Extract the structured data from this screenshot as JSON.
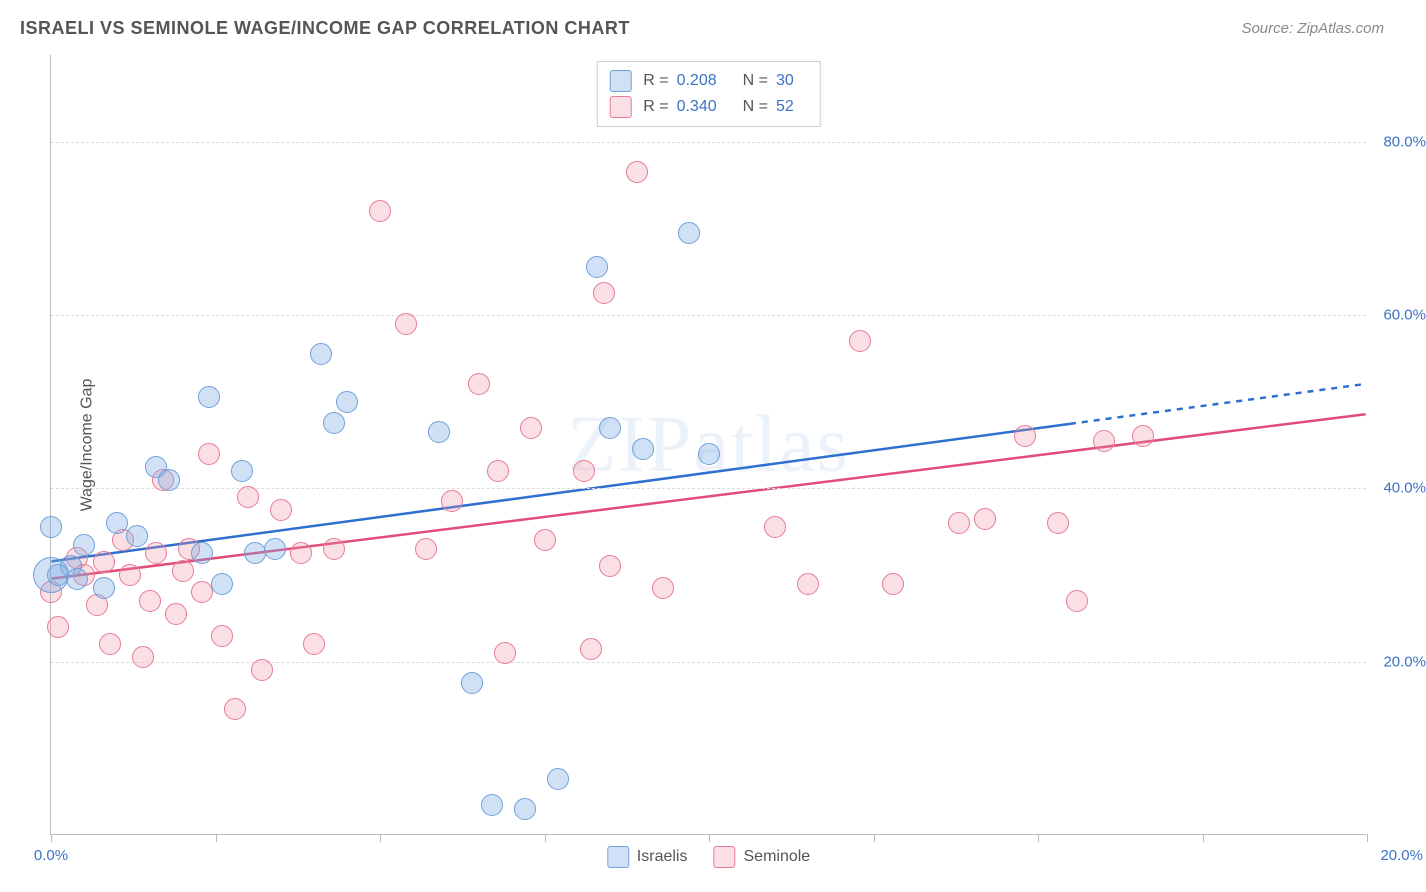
{
  "title": "ISRAELI VS SEMINOLE WAGE/INCOME GAP CORRELATION CHART",
  "source_label": "Source: ZipAtlas.com",
  "y_axis_label": "Wage/Income Gap",
  "watermark_text": "ZIPatlas",
  "plot": {
    "type": "scatter",
    "background_color": "#ffffff",
    "grid_color": "#dddddd",
    "axis_color": "#bbbbbb",
    "tick_label_color": "#3b73c4",
    "x_range": [
      0,
      20
    ],
    "y_range": [
      0,
      90
    ],
    "y_ticks": [
      20,
      40,
      60,
      80
    ],
    "y_tick_labels": [
      "20.0%",
      "40.0%",
      "60.0%",
      "80.0%"
    ],
    "x_ticks": [
      0,
      2.5,
      5,
      7.5,
      10,
      12.5,
      15,
      17.5,
      20
    ],
    "x_tick_labels": {
      "0": "0.0%",
      "20": "20.0%"
    }
  },
  "series": {
    "israelis": {
      "label": "Israelis",
      "fill_color": "rgba(122,168,225,0.35)",
      "stroke_color": "#6fa0da",
      "line_color": "#2e6fcf",
      "marker_radius": 11,
      "trend": {
        "y_at_x0": 31.5,
        "y_at_xmax": 52.0,
        "solid_until_x": 15.5
      },
      "points": [
        {
          "x": 0.0,
          "y": 35.5
        },
        {
          "x": 0.0,
          "y": 30,
          "r": 18
        },
        {
          "x": 0.3,
          "y": 31
        },
        {
          "x": 0.5,
          "y": 33.5
        },
        {
          "x": 0.8,
          "y": 28.5
        },
        {
          "x": 1.3,
          "y": 34.5
        },
        {
          "x": 1.6,
          "y": 42.5
        },
        {
          "x": 1.8,
          "y": 41
        },
        {
          "x": 2.3,
          "y": 32.5
        },
        {
          "x": 2.4,
          "y": 50.5
        },
        {
          "x": 2.6,
          "y": 29
        },
        {
          "x": 2.9,
          "y": 42
        },
        {
          "x": 3.1,
          "y": 32.5
        },
        {
          "x": 3.4,
          "y": 33
        },
        {
          "x": 4.1,
          "y": 55.5
        },
        {
          "x": 4.3,
          "y": 47.5
        },
        {
          "x": 4.5,
          "y": 50
        },
        {
          "x": 5.9,
          "y": 46.5
        },
        {
          "x": 6.4,
          "y": 17.5
        },
        {
          "x": 6.7,
          "y": 3.5
        },
        {
          "x": 7.2,
          "y": 3
        },
        {
          "x": 7.7,
          "y": 6.5
        },
        {
          "x": 8.3,
          "y": 65.5
        },
        {
          "x": 8.5,
          "y": 47
        },
        {
          "x": 9.0,
          "y": 44.5
        },
        {
          "x": 9.7,
          "y": 69.5
        },
        {
          "x": 10.0,
          "y": 44
        },
        {
          "x": 0.1,
          "y": 30
        },
        {
          "x": 0.4,
          "y": 29.5
        },
        {
          "x": 1.0,
          "y": 36
        }
      ]
    },
    "seminole": {
      "label": "Seminole",
      "fill_color": "rgba(237,148,170,0.30)",
      "stroke_color": "#e77b97",
      "line_color": "#e04d78",
      "marker_radius": 11,
      "trend": {
        "y_at_x0": 29.5,
        "y_at_xmax": 48.5,
        "solid_until_x": 20
      },
      "points": [
        {
          "x": 0.0,
          "y": 28
        },
        {
          "x": 0.1,
          "y": 24
        },
        {
          "x": 0.4,
          "y": 32
        },
        {
          "x": 0.5,
          "y": 30
        },
        {
          "x": 0.7,
          "y": 26.5
        },
        {
          "x": 0.8,
          "y": 31.5
        },
        {
          "x": 0.9,
          "y": 22
        },
        {
          "x": 1.1,
          "y": 34
        },
        {
          "x": 1.2,
          "y": 30
        },
        {
          "x": 1.4,
          "y": 20.5
        },
        {
          "x": 1.5,
          "y": 27
        },
        {
          "x": 1.6,
          "y": 32.5
        },
        {
          "x": 1.7,
          "y": 41
        },
        {
          "x": 1.9,
          "y": 25.5
        },
        {
          "x": 2.0,
          "y": 30.5
        },
        {
          "x": 2.1,
          "y": 33
        },
        {
          "x": 2.3,
          "y": 28
        },
        {
          "x": 2.4,
          "y": 44
        },
        {
          "x": 2.6,
          "y": 23
        },
        {
          "x": 2.8,
          "y": 14.5
        },
        {
          "x": 3.0,
          "y": 39
        },
        {
          "x": 3.2,
          "y": 19
        },
        {
          "x": 3.5,
          "y": 37.5
        },
        {
          "x": 3.8,
          "y": 32.5
        },
        {
          "x": 4.0,
          "y": 22
        },
        {
          "x": 4.3,
          "y": 33
        },
        {
          "x": 5.0,
          "y": 72
        },
        {
          "x": 5.4,
          "y": 59
        },
        {
          "x": 5.7,
          "y": 33
        },
        {
          "x": 6.1,
          "y": 38.5
        },
        {
          "x": 6.5,
          "y": 52
        },
        {
          "x": 6.8,
          "y": 42
        },
        {
          "x": 6.9,
          "y": 21
        },
        {
          "x": 7.3,
          "y": 47
        },
        {
          "x": 7.5,
          "y": 34
        },
        {
          "x": 8.1,
          "y": 42
        },
        {
          "x": 8.2,
          "y": 21.5
        },
        {
          "x": 8.4,
          "y": 62.5
        },
        {
          "x": 8.5,
          "y": 31
        },
        {
          "x": 8.9,
          "y": 76.5
        },
        {
          "x": 9.3,
          "y": 28.5
        },
        {
          "x": 11.0,
          "y": 35.5
        },
        {
          "x": 11.5,
          "y": 29
        },
        {
          "x": 12.3,
          "y": 57
        },
        {
          "x": 12.8,
          "y": 29
        },
        {
          "x": 13.8,
          "y": 36
        },
        {
          "x": 14.2,
          "y": 36.5
        },
        {
          "x": 14.8,
          "y": 46
        },
        {
          "x": 15.3,
          "y": 36
        },
        {
          "x": 15.6,
          "y": 27
        },
        {
          "x": 16.0,
          "y": 45.5
        },
        {
          "x": 16.6,
          "y": 46
        }
      ]
    }
  },
  "stats_legend": [
    {
      "series": "israelis",
      "r_label": "R =",
      "r_value": "0.208",
      "n_label": "N =",
      "n_value": "30"
    },
    {
      "series": "seminole",
      "r_label": "R =",
      "r_value": "0.340",
      "n_label": "N =",
      "n_value": "52"
    }
  ]
}
